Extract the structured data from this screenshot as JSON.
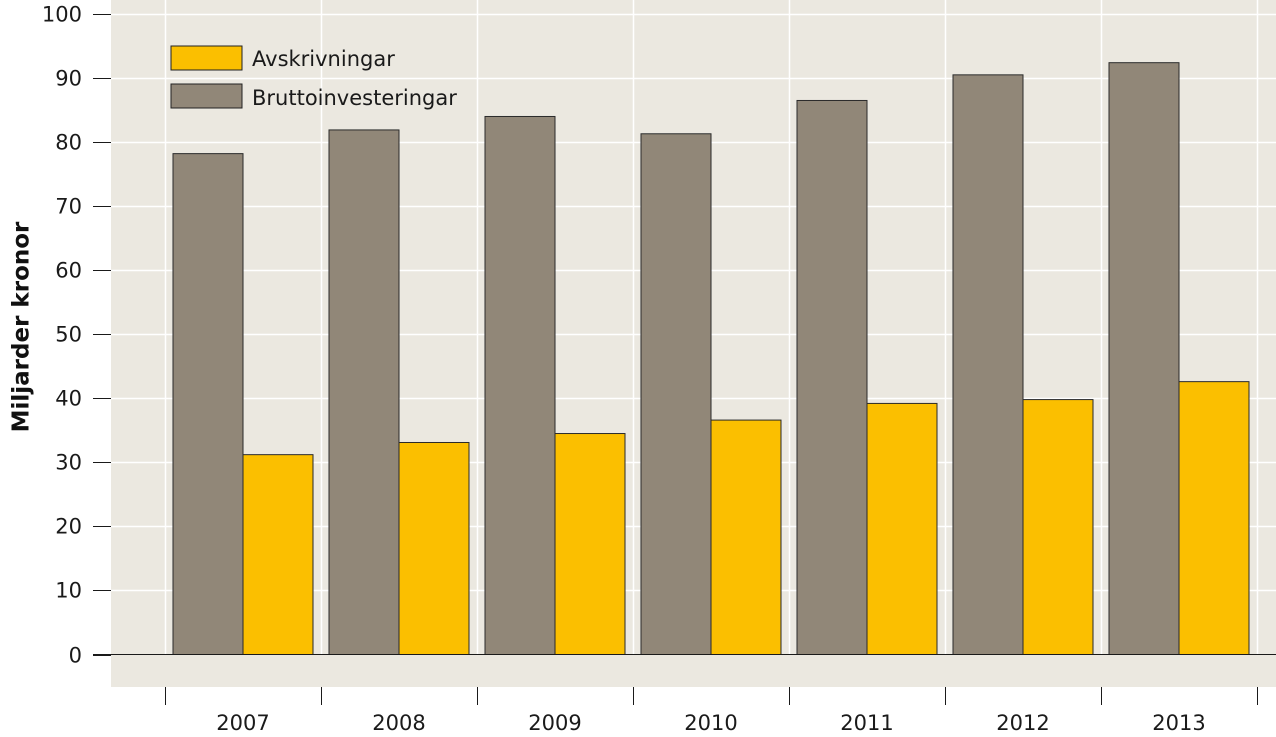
{
  "chart_data": {
    "type": "bar",
    "categories": [
      "2007",
      "2008",
      "2009",
      "2010",
      "2011",
      "2012",
      "2013"
    ],
    "series": [
      {
        "name": "Bruttoinvesteringar",
        "values": [
          78.2,
          81.9,
          84.0,
          81.3,
          86.5,
          90.5,
          92.4
        ],
        "color": "#918778"
      },
      {
        "name": "Avskrivningar",
        "values": [
          31.2,
          33.1,
          34.5,
          36.6,
          39.2,
          39.8,
          42.6
        ],
        "color": "#fbbf00"
      }
    ],
    "legend": [
      "Avskrivningar",
      "Bruttoinvesteringar"
    ],
    "ylabel": "Miljarder kronor",
    "ylim": [
      0,
      100
    ],
    "yticks": [
      "0",
      "10",
      "20",
      "30",
      "40",
      "50",
      "60",
      "70",
      "80",
      "90",
      "100"
    ],
    "grid": true,
    "legend_position": "top-left",
    "plot_background": "#ebe8e0"
  }
}
